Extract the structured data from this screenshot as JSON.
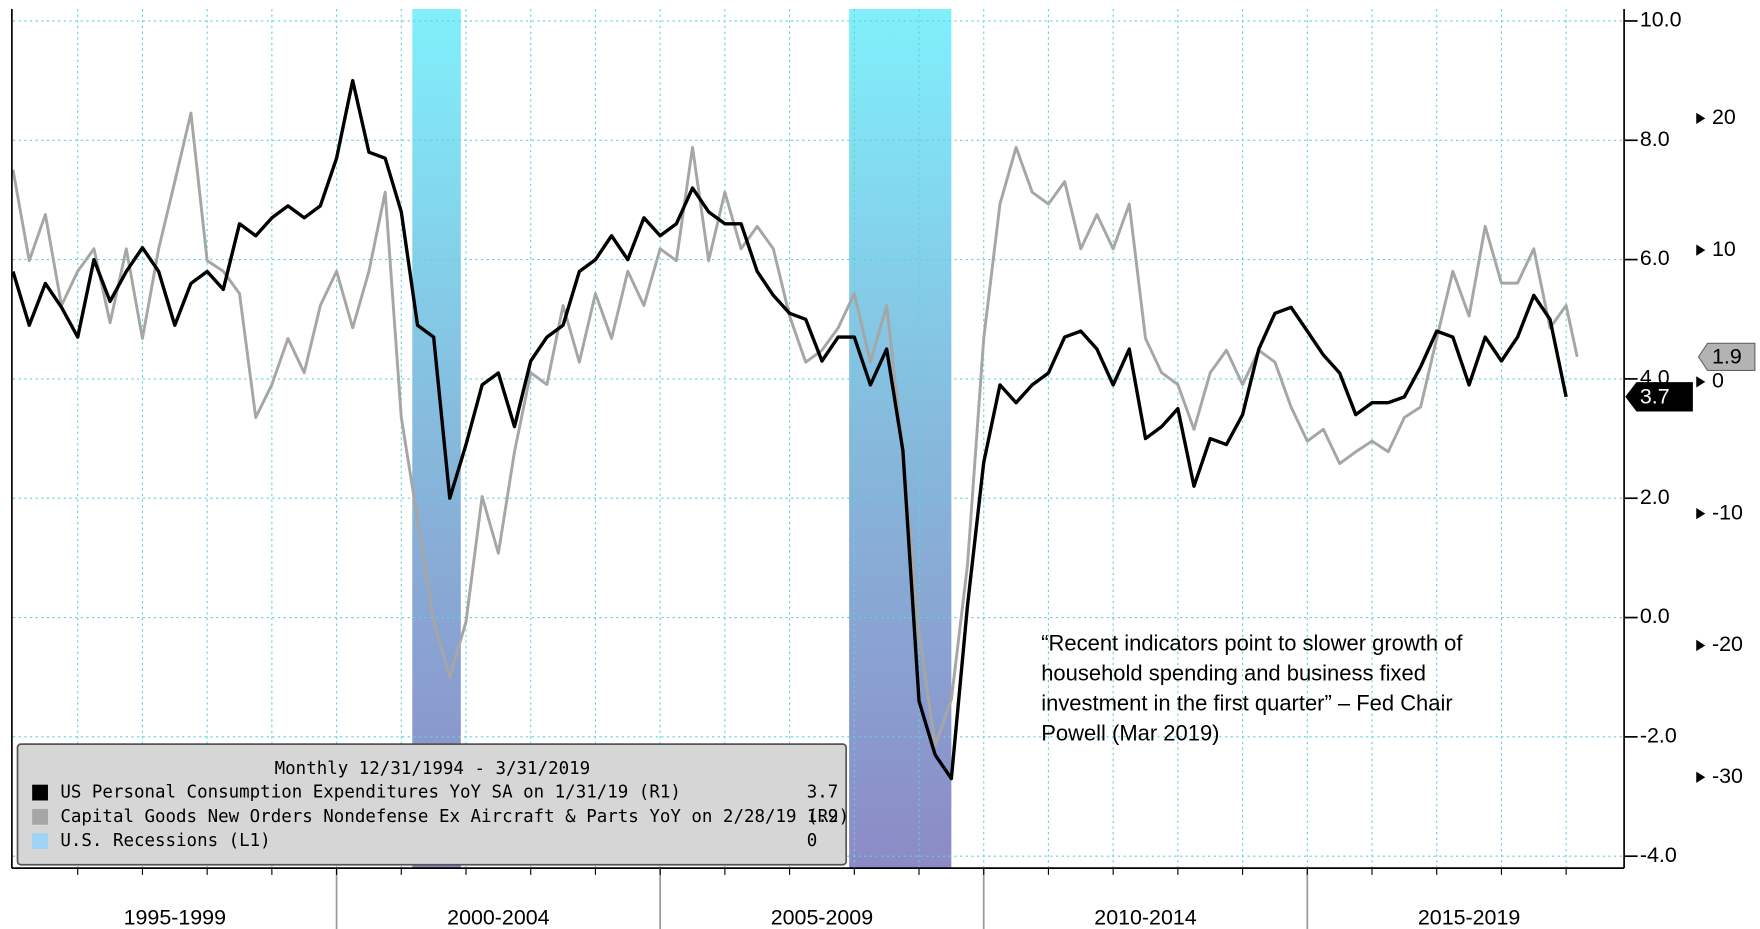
{
  "chart_data": {
    "type": "line",
    "legend_header": "Monthly 12/31/1994 - 3/31/2019",
    "annotation": [
      "“Recent indicators point to slower growth of",
      "household spending and business fixed",
      "investment in the first quarter” – Fed Chair",
      "Powell (Mar 2019)"
    ],
    "x": [
      1995,
      1995.25,
      1995.5,
      1995.75,
      1996,
      1996.25,
      1996.5,
      1996.75,
      1997,
      1997.25,
      1997.5,
      1997.75,
      1998,
      1998.25,
      1998.5,
      1998.75,
      1999,
      1999.25,
      1999.5,
      1999.75,
      2000,
      2000.25,
      2000.5,
      2000.75,
      2001,
      2001.25,
      2001.5,
      2001.75,
      2002,
      2002.25,
      2002.5,
      2002.75,
      2003,
      2003.25,
      2003.5,
      2003.75,
      2004,
      2004.25,
      2004.5,
      2004.75,
      2005,
      2005.25,
      2005.5,
      2005.75,
      2006,
      2006.25,
      2006.5,
      2006.75,
      2007,
      2007.25,
      2007.5,
      2007.75,
      2008,
      2008.25,
      2008.5,
      2008.75,
      2009,
      2009.25,
      2009.5,
      2009.75,
      2010,
      2010.25,
      2010.5,
      2010.75,
      2011,
      2011.25,
      2011.5,
      2011.75,
      2012,
      2012.25,
      2012.5,
      2012.75,
      2013,
      2013.25,
      2013.5,
      2013.75,
      2014,
      2014.25,
      2014.5,
      2014.75,
      2015,
      2015.25,
      2015.5,
      2015.75,
      2016,
      2016.25,
      2016.5,
      2016.75,
      2017,
      2017.25,
      2017.5,
      2017.75,
      2018,
      2018.25,
      2018.5,
      2018.75,
      2019,
      2019.17
    ],
    "xlim": [
      1995,
      2019.9
    ],
    "x_grid": [
      1996,
      1997,
      1998,
      1999,
      2000,
      2001,
      2002,
      2003,
      2004,
      2005,
      2006,
      2007,
      2008,
      2009,
      2010,
      2011,
      2012,
      2013,
      2014,
      2015,
      2016,
      2017,
      2018,
      2019
    ],
    "x_separators": [
      2000,
      2005,
      2010,
      2015
    ],
    "xticks": [
      {
        "value": 1997.5,
        "label": "1995-1999"
      },
      {
        "value": 2002.5,
        "label": "2000-2004"
      },
      {
        "value": 2007.5,
        "label": "2005-2009"
      },
      {
        "value": 2012.5,
        "label": "2010-2014"
      },
      {
        "value": 2017.5,
        "label": "2015-2019"
      }
    ],
    "ylim": [
      -4.2,
      10.2
    ],
    "yticks": [
      {
        "value": 10,
        "label": "10.0"
      },
      {
        "value": 8,
        "label": "8.0"
      },
      {
        "value": 6,
        "label": "6.0"
      },
      {
        "value": 4,
        "label": "4.0"
      },
      {
        "value": 2,
        "label": "2.0"
      },
      {
        "value": 0,
        "label": "0.0"
      },
      {
        "value": -2,
        "label": "-2.0"
      },
      {
        "value": -4,
        "label": "-4.0"
      }
    ],
    "y2lim": [
      -36.9,
      28.3
    ],
    "y2ticks": [
      20,
      10,
      0,
      -10,
      -20,
      -30
    ],
    "grid": true,
    "series": [
      {
        "name": "US Personal Consumption Expenditures YoY SA on 1/31/19 (R1)",
        "color": "#000000",
        "legend_value": 3.7,
        "values": [
          5.8,
          4.9,
          5.6,
          5.2,
          4.7,
          6.0,
          5.3,
          5.8,
          6.2,
          5.8,
          4.9,
          5.6,
          5.8,
          5.5,
          6.6,
          6.4,
          6.7,
          6.9,
          6.7,
          6.9,
          7.7,
          9.0,
          7.8,
          7.7,
          6.8,
          4.9,
          4.7,
          2.0,
          2.9,
          3.9,
          4.1,
          3.2,
          4.3,
          4.7,
          4.9,
          5.8,
          6.0,
          6.4,
          6.0,
          6.7,
          6.4,
          6.6,
          7.2,
          6.8,
          6.6,
          6.6,
          5.8,
          5.4,
          5.1,
          5.0,
          4.3,
          4.7,
          4.7,
          3.9,
          4.5,
          2.8,
          -1.4,
          -2.3,
          -2.7,
          0.2,
          2.6,
          3.9,
          3.6,
          3.9,
          4.1,
          4.7,
          4.8,
          4.5,
          3.9,
          4.5,
          3.0,
          3.2,
          3.5,
          2.2,
          3.0,
          2.9,
          3.4,
          4.5,
          5.1,
          5.2,
          4.8,
          4.4,
          4.1,
          3.4,
          3.6,
          3.6,
          3.7,
          4.2,
          4.8,
          4.7,
          3.9,
          4.7,
          4.3,
          4.7,
          5.4,
          5.0,
          3.7,
          null
        ]
      },
      {
        "name": "Capital Goods New Orders Nondefense Ex Aircraft & Parts YoY on 2/28/19 (R2)",
        "color": "#a6a6a6",
        "axis": "y2",
        "legend_value": 1.9,
        "values": [
          16.1,
          9.2,
          12.7,
          5.8,
          8.4,
          10.1,
          4.5,
          10.1,
          3.3,
          10.1,
          15.2,
          20.4,
          9.2,
          8.4,
          6.7,
          -2.7,
          -0.2,
          3.3,
          0.7,
          5.8,
          8.4,
          4.1,
          8.4,
          14.4,
          -2.7,
          -10.4,
          -18.2,
          -22.4,
          -18.2,
          -8.7,
          -13.0,
          -5.3,
          0.7,
          -0.2,
          5.8,
          1.5,
          6.7,
          3.3,
          8.4,
          5.8,
          10.1,
          9.2,
          17.8,
          9.2,
          14.4,
          10.1,
          11.8,
          10.1,
          5.0,
          1.5,
          2.4,
          4.1,
          6.7,
          1.5,
          5.8,
          -5.3,
          -19.0,
          -27.6,
          -24.1,
          -13.9,
          3.3,
          13.5,
          17.8,
          14.4,
          13.5,
          15.2,
          10.1,
          12.7,
          10.1,
          13.5,
          3.3,
          0.7,
          -0.2,
          -3.6,
          0.7,
          2.4,
          -0.2,
          2.4,
          1.5,
          -1.9,
          -4.5,
          -3.6,
          -6.2,
          -5.3,
          -4.5,
          -5.3,
          -2.7,
          -1.9,
          3.3,
          8.4,
          5.0,
          11.8,
          7.5,
          7.5,
          10.1,
          4.1,
          5.8,
          1.9
        ]
      }
    ],
    "recessions": {
      "name": "U.S. Recessions (L1)",
      "color": "#9fd4f7",
      "legend_value": 0,
      "y1lim": [
        0,
        1
      ],
      "starts": [
        2001.17,
        2007.92
      ],
      "ends": [
        2001.92,
        2009.5
      ],
      "values": [
        1,
        1
      ]
    }
  }
}
